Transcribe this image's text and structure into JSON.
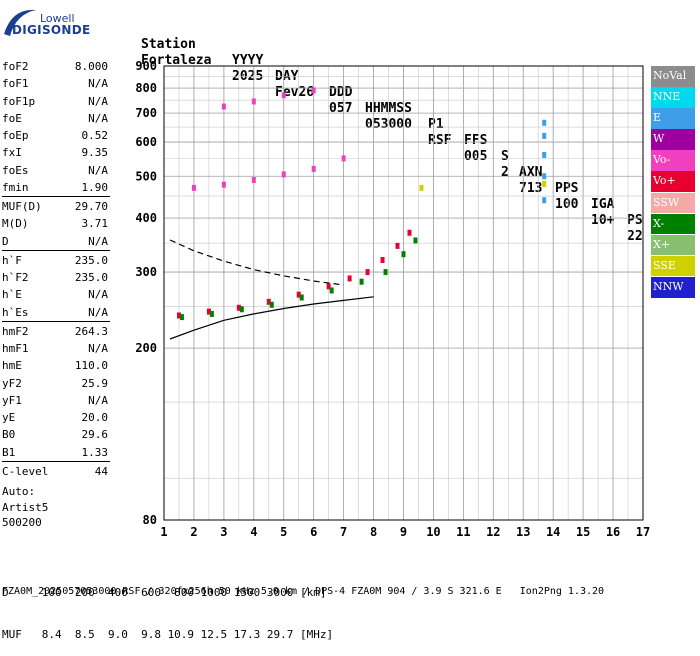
{
  "logo": {
    "top": "Lowell",
    "main": "DIGISONDE"
  },
  "header": {
    "labels": [
      "Station",
      "YYYY",
      "DAY",
      "DDD",
      "HHMMSS",
      "P1",
      "FFS",
      "S",
      "AXN",
      "PPS",
      "IGA",
      "PS"
    ],
    "values": [
      "Fortaleza",
      "2025",
      "Fev26",
      "057",
      "053000",
      "RSF",
      "005",
      "2",
      "713",
      "100",
      "10+",
      "22"
    ]
  },
  "params": [
    {
      "label": "foF2",
      "value": "8.000"
    },
    {
      "label": "foF1",
      "value": "N/A"
    },
    {
      "label": "foF1p",
      "value": "N/A"
    },
    {
      "label": "foE",
      "value": "N/A"
    },
    {
      "label": "foEp",
      "value": "0.52"
    },
    {
      "label": "fxI",
      "value": "9.35"
    },
    {
      "label": "foEs",
      "value": "N/A"
    },
    {
      "label": "fmin",
      "value": "1.90"
    },
    {
      "label": "MUF(D)",
      "value": "29.70"
    },
    {
      "label": "M(D)",
      "value": "3.71"
    },
    {
      "label": "D",
      "value": "N/A"
    },
    {
      "label": "h`F",
      "value": "235.0"
    },
    {
      "label": "h`F2",
      "value": "235.0"
    },
    {
      "label": "h`E",
      "value": "N/A"
    },
    {
      "label": "h`Es",
      "value": "N/A"
    },
    {
      "label": "hmF2",
      "value": "264.3"
    },
    {
      "label": "hmF1",
      "value": "N/A"
    },
    {
      "label": "hmE",
      "value": "110.0"
    },
    {
      "label": "yF2",
      "value": "25.9"
    },
    {
      "label": "yF1",
      "value": "N/A"
    },
    {
      "label": "yE",
      "value": "20.0"
    },
    {
      "label": "B0",
      "value": "29.6"
    },
    {
      "label": "B1",
      "value": "1.33"
    },
    {
      "label": "C-level",
      "value": "44"
    }
  ],
  "auto": {
    "l1": "Auto:",
    "l2": "Artist5",
    "l3": "500200"
  },
  "legend": [
    {
      "label": "NoVal",
      "color": "#8c8c8c"
    },
    {
      "label": "NNE",
      "color": "#00d8f0"
    },
    {
      "label": "E",
      "color": "#3f9ee8"
    },
    {
      "label": "W",
      "color": "#9e00a0"
    },
    {
      "label": "Vo-",
      "color": "#f040c0"
    },
    {
      "label": "Vo+",
      "color": "#e80030"
    },
    {
      "label": "SSW",
      "color": "#f5aaa8"
    },
    {
      "label": "X-",
      "color": "#008000"
    },
    {
      "label": "X+",
      "color": "#88c070"
    },
    {
      "label": "SSE",
      "color": "#d0d000"
    },
    {
      "label": "NNW",
      "color": "#2020d0"
    }
  ],
  "bottom": {
    "d_line": "D     100  200  400  600  800 1000 1500 3000 [km]",
    "muf_line": "MUF   8.4  8.5  9.0  9.8 10.9 12.5 17.3 29.7 [MHz]"
  },
  "footer": "FZA0M_2025057053000.RSF / 320fx256h 50 kHz 5.0 km / DPS-4 FZA0M 904 / 3.9 S 321.6 E   Ion2Png 1.3.20",
  "chart_data": {
    "type": "scatter",
    "title": "",
    "xlabel": "",
    "ylabel": "",
    "xlim": [
      1,
      17
    ],
    "ylim": [
      80,
      900
    ],
    "y_scale": "log",
    "x_ticks": [
      1,
      2,
      3,
      4,
      5,
      6,
      7,
      8,
      9,
      10,
      11,
      12,
      13,
      14,
      15,
      16,
      17
    ],
    "y_ticks": [
      80,
      200,
      300,
      400,
      500,
      600,
      700,
      800,
      900
    ],
    "grid": true,
    "legend_position": "right",
    "series": [
      {
        "name": "Vo+",
        "color": "#e80030",
        "points": [
          [
            1.5,
            238
          ],
          [
            2.5,
            243
          ],
          [
            3.5,
            248
          ],
          [
            4.5,
            256
          ],
          [
            5.5,
            266
          ],
          [
            6.5,
            278
          ],
          [
            7.2,
            290
          ],
          [
            7.8,
            300
          ],
          [
            8.3,
            320
          ],
          [
            8.8,
            345
          ],
          [
            9.2,
            370
          ]
        ]
      },
      {
        "name": "X-",
        "color": "#008000",
        "points": [
          [
            1.6,
            236
          ],
          [
            2.6,
            240
          ],
          [
            3.6,
            246
          ],
          [
            4.6,
            252
          ],
          [
            5.6,
            262
          ],
          [
            6.6,
            272
          ],
          [
            7.6,
            285
          ],
          [
            8.4,
            300
          ],
          [
            9.0,
            330
          ],
          [
            9.4,
            355
          ]
        ]
      },
      {
        "name": "Vo-",
        "color": "#f040c0",
        "points": [
          [
            2.0,
            470
          ],
          [
            3.0,
            478
          ],
          [
            4.0,
            490
          ],
          [
            5.0,
            505
          ],
          [
            6.0,
            520
          ],
          [
            7.0,
            550
          ],
          [
            3.0,
            725
          ],
          [
            4.0,
            745
          ],
          [
            5.0,
            770
          ],
          [
            6.0,
            790
          ]
        ]
      },
      {
        "name": "E",
        "color": "#3f9ee8",
        "points": [
          [
            13.7,
            440
          ],
          [
            13.7,
            500
          ],
          [
            13.7,
            560
          ],
          [
            13.7,
            620
          ],
          [
            13.7,
            665
          ]
        ]
      },
      {
        "name": "SSE",
        "color": "#d0d000",
        "points": [
          [
            13.7,
            480
          ],
          [
            9.6,
            470
          ]
        ]
      }
    ],
    "trace_solid": [
      [
        1.2,
        210
      ],
      [
        2,
        220
      ],
      [
        3,
        232
      ],
      [
        4,
        240
      ],
      [
        5,
        247
      ],
      [
        6,
        253
      ],
      [
        7,
        258
      ],
      [
        8,
        263
      ]
    ],
    "trace_dashed": [
      [
        1.2,
        356
      ],
      [
        2,
        336
      ],
      [
        3,
        318
      ],
      [
        4,
        304
      ],
      [
        5,
        294
      ],
      [
        6,
        286
      ],
      [
        7,
        280
      ]
    ]
  }
}
